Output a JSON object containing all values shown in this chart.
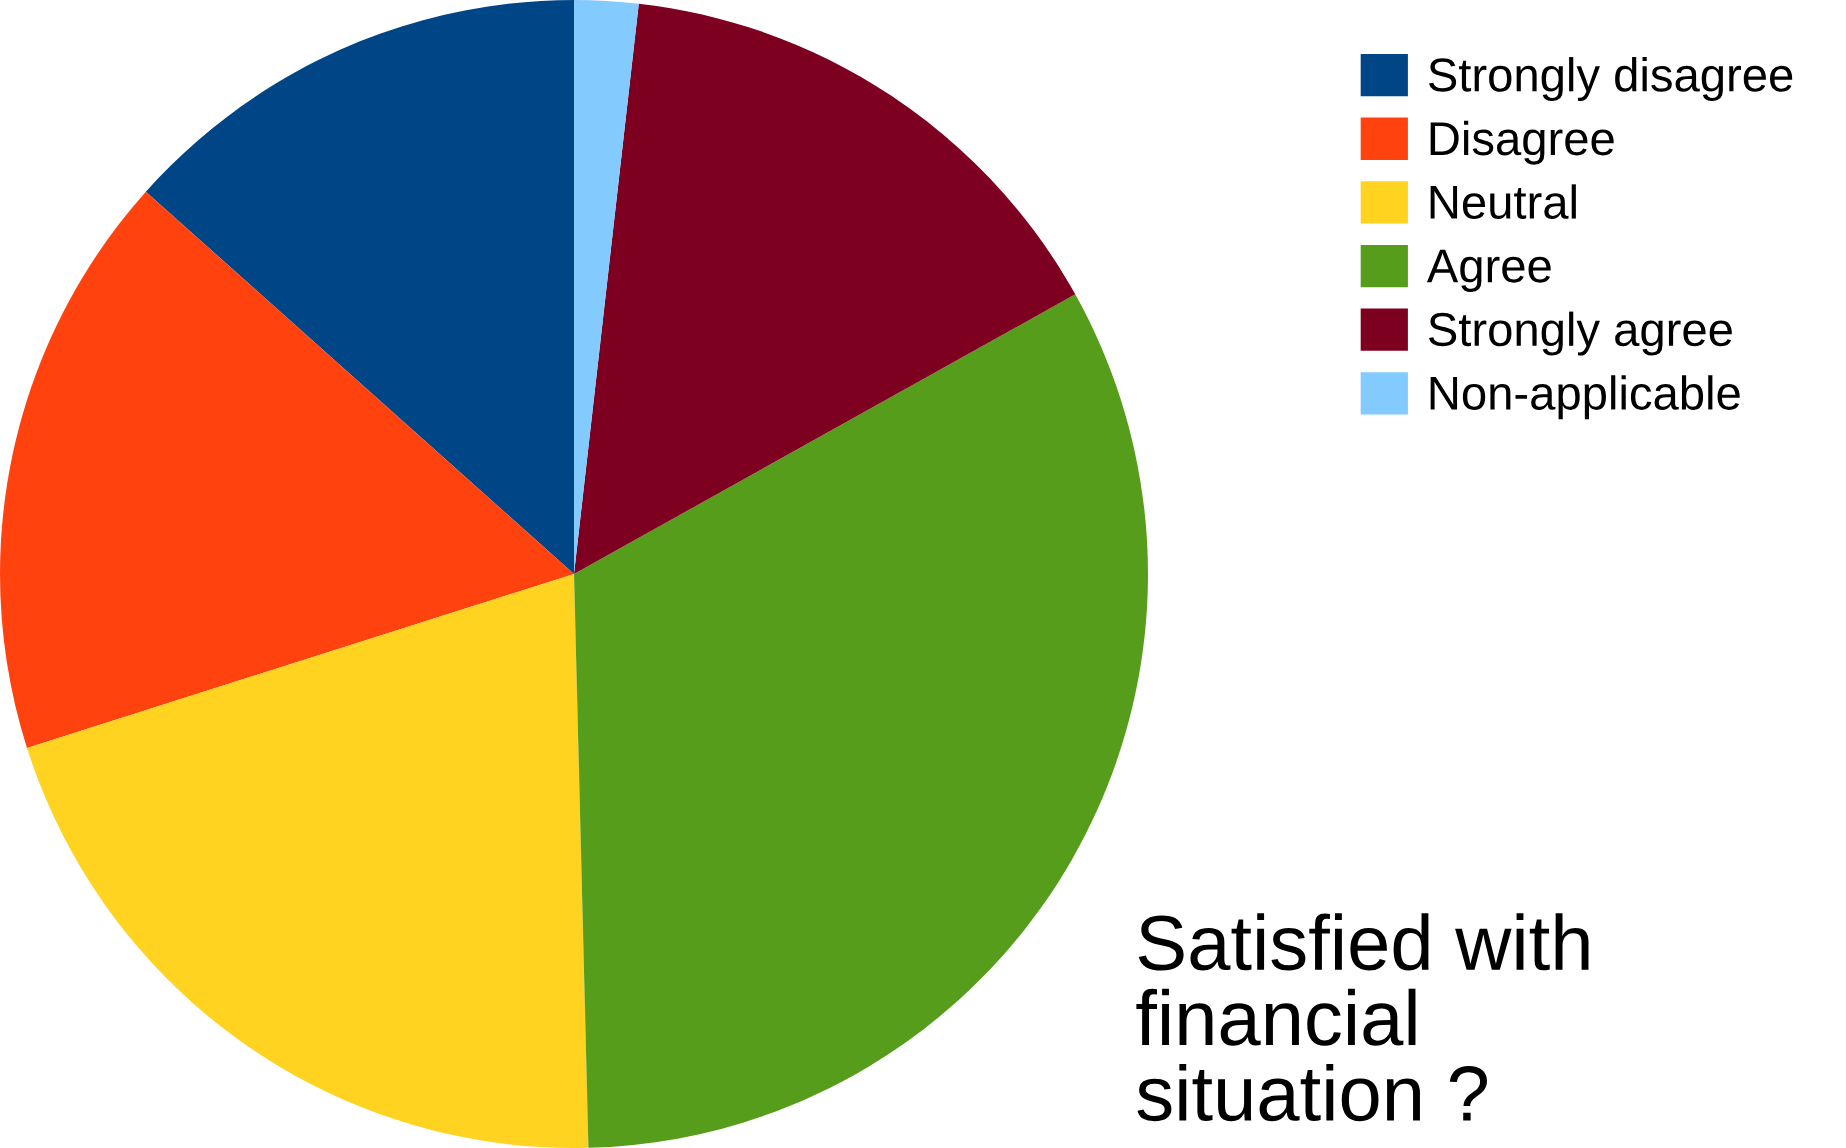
{
  "chart_data": {
    "type": "pie",
    "title": "Satisfied with\nfinancial\nsituation ?",
    "categories": [
      "Strongly disagree",
      "Disagree",
      "Neutral",
      "Agree",
      "Strongly agree",
      "Non-applicable"
    ],
    "values": [
      13.4,
      16.5,
      20.5,
      32.7,
      15.1,
      1.8
    ],
    "colors": [
      "#004586",
      "#ff420e",
      "#ffd320",
      "#579d1c",
      "#7e0021",
      "#83caff"
    ],
    "legend": "top right"
  }
}
